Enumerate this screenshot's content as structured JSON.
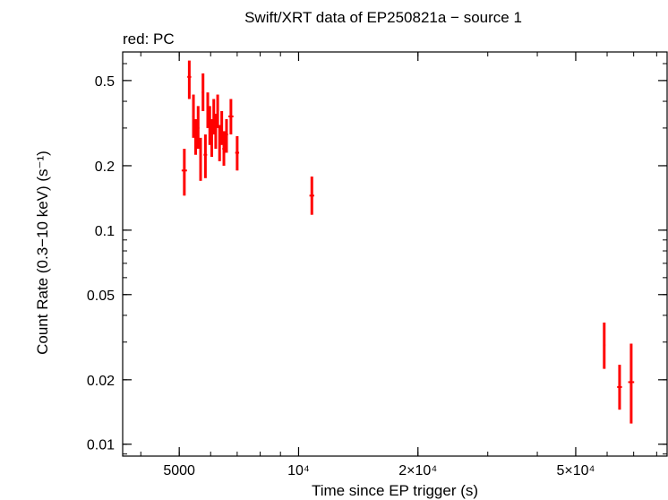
{
  "chart_data": {
    "type": "scatter",
    "title": "Swift/XRT data of EP250821a − source 1",
    "subtitle": "red: PC",
    "xlabel": "Time since EP trigger (s)",
    "ylabel": "Count Rate (0.3−10 keV) (s⁻¹)",
    "xscale": "log",
    "yscale": "log",
    "xlim": [
      3600,
      85000
    ],
    "ylim": [
      0.0088,
      0.68
    ],
    "x_ticks": [
      {
        "value": 5000,
        "label": "5000"
      },
      {
        "value": 10000,
        "label": "10⁴"
      },
      {
        "value": 20000,
        "label": "2×10⁴"
      },
      {
        "value": 50000,
        "label": "5×10⁴"
      }
    ],
    "y_ticks": [
      {
        "value": 0.01,
        "label": "0.01"
      },
      {
        "value": 0.02,
        "label": "0.02"
      },
      {
        "value": 0.05,
        "label": "0.05"
      },
      {
        "value": 0.1,
        "label": "0.1"
      },
      {
        "value": 0.2,
        "label": "0.2"
      },
      {
        "value": 0.5,
        "label": "0.5"
      }
    ],
    "series": [
      {
        "name": "PC",
        "color": "#ff0000",
        "points": [
          {
            "x": 5150,
            "xerr": 80,
            "y": 0.19,
            "ylo": 0.145,
            "yhi": 0.24
          },
          {
            "x": 5300,
            "xerr": 60,
            "y": 0.52,
            "ylo": 0.41,
            "yhi": 0.62
          },
          {
            "x": 5430,
            "xerr": 40,
            "y": 0.34,
            "ylo": 0.27,
            "yhi": 0.43
          },
          {
            "x": 5500,
            "xerr": 40,
            "y": 0.27,
            "ylo": 0.225,
            "yhi": 0.33
          },
          {
            "x": 5580,
            "xerr": 40,
            "y": 0.3,
            "ylo": 0.24,
            "yhi": 0.38
          },
          {
            "x": 5660,
            "xerr": 40,
            "y": 0.22,
            "ylo": 0.17,
            "yhi": 0.27
          },
          {
            "x": 5740,
            "xerr": 40,
            "y": 0.44,
            "ylo": 0.36,
            "yhi": 0.54
          },
          {
            "x": 5820,
            "xerr": 60,
            "y": 0.225,
            "ylo": 0.175,
            "yhi": 0.28
          },
          {
            "x": 5900,
            "xerr": 40,
            "y": 0.36,
            "ylo": 0.3,
            "yhi": 0.44
          },
          {
            "x": 5970,
            "xerr": 40,
            "y": 0.31,
            "ylo": 0.25,
            "yhi": 0.38
          },
          {
            "x": 6040,
            "xerr": 40,
            "y": 0.27,
            "ylo": 0.22,
            "yhi": 0.33
          },
          {
            "x": 6110,
            "xerr": 40,
            "y": 0.34,
            "ylo": 0.28,
            "yhi": 0.41
          },
          {
            "x": 6180,
            "xerr": 40,
            "y": 0.29,
            "ylo": 0.24,
            "yhi": 0.35
          },
          {
            "x": 6250,
            "xerr": 40,
            "y": 0.36,
            "ylo": 0.3,
            "yhi": 0.43
          },
          {
            "x": 6320,
            "xerr": 40,
            "y": 0.26,
            "ylo": 0.21,
            "yhi": 0.31
          },
          {
            "x": 6400,
            "xerr": 40,
            "y": 0.3,
            "ylo": 0.25,
            "yhi": 0.36
          },
          {
            "x": 6480,
            "xerr": 60,
            "y": 0.24,
            "ylo": 0.2,
            "yhi": 0.29
          },
          {
            "x": 6580,
            "xerr": 60,
            "y": 0.28,
            "ylo": 0.23,
            "yhi": 0.33
          },
          {
            "x": 6750,
            "xerr": 100,
            "y": 0.34,
            "ylo": 0.28,
            "yhi": 0.41
          },
          {
            "x": 7000,
            "xerr": 80,
            "y": 0.23,
            "ylo": 0.19,
            "yhi": 0.275
          },
          {
            "x": 10800,
            "xerr": 150,
            "y": 0.145,
            "ylo": 0.118,
            "yhi": 0.178
          },
          {
            "x": 59000,
            "xerr": 400,
            "y": 0.029,
            "ylo": 0.0225,
            "yhi": 0.037
          },
          {
            "x": 64500,
            "xerr": 900,
            "y": 0.0185,
            "ylo": 0.0145,
            "yhi": 0.0235
          },
          {
            "x": 69000,
            "xerr": 1200,
            "y": 0.0195,
            "ylo": 0.0125,
            "yhi": 0.0295
          }
        ]
      }
    ]
  }
}
